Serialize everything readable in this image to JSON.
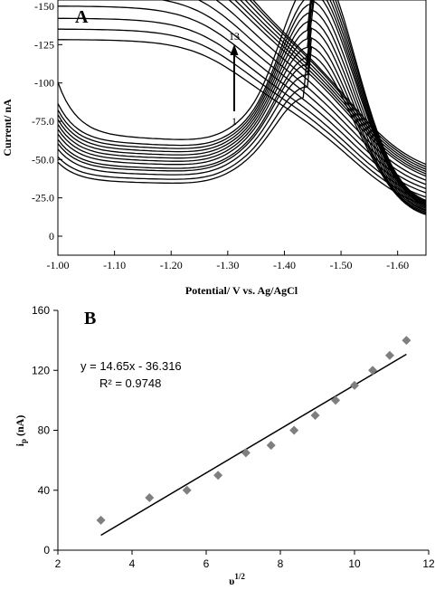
{
  "chart_data": [
    {
      "panel_label": "A",
      "type": "line",
      "xlabel": "Potential/ V vs. Ag/AgCl",
      "ylabel": "Current/ nA",
      "xlim": [
        -1.0,
        -1.65
      ],
      "ylim": [
        -150,
        0
      ],
      "x_ticks": [
        "-1.00",
        "-1.10",
        "-1.20",
        "-1.30",
        "-1.40",
        "-1.50",
        "-1.60"
      ],
      "x_tick_values": [
        -1.0,
        -1.1,
        -1.2,
        -1.3,
        -1.4,
        -1.5,
        -1.6
      ],
      "y_ticks": [
        "-150",
        "-125",
        "-100",
        "-75.0",
        "-50.0",
        "-25.0",
        "0"
      ],
      "y_tick_values": [
        -150,
        -125,
        -100,
        -75,
        -50,
        -25,
        0
      ],
      "arrow_start_label": "1",
      "arrow_end_label": "13",
      "grid": false,
      "peak_potential": -1.44,
      "peak_currents": [
        -82,
        -88,
        -95,
        -101,
        -105,
        -111,
        -116,
        -121,
        -126,
        -131,
        -136,
        -141,
        -150
      ],
      "reverse_start_currents": [
        -6,
        -8,
        -10,
        -12,
        -14,
        -16,
        -18,
        -20,
        -21,
        -22,
        -23,
        -24,
        -25
      ],
      "forward_start_currents": [
        -13,
        -14,
        -16,
        -17,
        -18,
        -19,
        -20,
        -21,
        -22,
        -23,
        -24,
        -26,
        -36
      ],
      "vertex_currents": [
        -90,
        -93,
        -96,
        -100,
        -104,
        -108,
        -112,
        -116,
        -118,
        -120,
        -122,
        -124,
        -125
      ]
    },
    {
      "panel_label": "B",
      "type": "scatter",
      "xlabel": "υ",
      "xlabel_superscript": "1/2",
      "ylabel": "i",
      "ylabel_subscript": "p",
      "ylabel_suffix": " (nA)",
      "xlim": [
        2,
        12
      ],
      "ylim": [
        0,
        160
      ],
      "x_ticks": [
        "2",
        "4",
        "6",
        "8",
        "10",
        "12"
      ],
      "x_tick_values": [
        2,
        4,
        6,
        8,
        10,
        12
      ],
      "y_ticks": [
        "0",
        "40",
        "80",
        "120",
        "160"
      ],
      "y_tick_values": [
        0,
        40,
        80,
        120,
        160
      ],
      "grid": false,
      "points": {
        "x": [
          3.16,
          4.47,
          5.48,
          6.32,
          7.07,
          7.75,
          8.37,
          8.94,
          9.49,
          10.0,
          10.49,
          10.95,
          11.4
        ],
        "y": [
          20,
          35,
          40,
          50,
          65,
          70,
          80,
          90,
          100,
          110,
          120,
          130,
          140
        ]
      },
      "trendline": {
        "slope": 14.65,
        "intercept": -36.316,
        "x_range": [
          3.16,
          11.4
        ]
      },
      "equation_text": "y = 14.65x - 36.316",
      "r2_text": "R² = 0.9748",
      "marker_color": "#7f7f7f",
      "line_color": "#000000"
    }
  ]
}
